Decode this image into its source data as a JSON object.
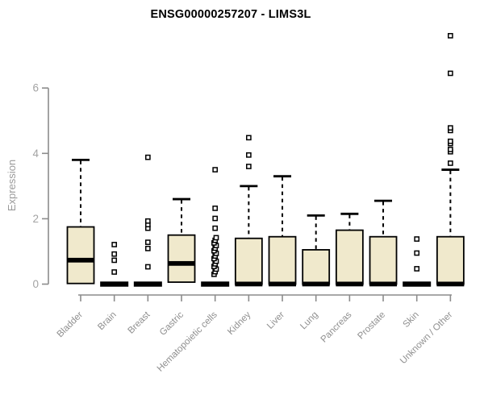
{
  "chart_data": {
    "type": "boxplot",
    "title": "ENSG00000257207 - LIMS3L",
    "ylabel": "Expression",
    "xlabel": "",
    "ylim": [
      0,
      7.8
    ],
    "yticks": [
      0,
      2,
      4,
      6
    ],
    "grid": false,
    "legend": false,
    "box_fill_color": "#f0e9cc",
    "box_border_color": "#000000",
    "median_color": "#000000",
    "axis_color": "#8c8c8c",
    "ytick_label_color": "#a3a3a3",
    "xtick_label_color": "#8f8f8f",
    "outlier_shape": "open-square",
    "categories": [
      "Bladder",
      "Brain",
      "Breast",
      "Gastric",
      "Hematopoietic cells",
      "Kidney",
      "Liver",
      "Lung",
      "Pancreas",
      "Prostate",
      "Skin",
      "Unknown / Other"
    ],
    "boxes": [
      {
        "category": "Bladder",
        "min": 0,
        "q1": 0.02,
        "median": 0.75,
        "q3": 1.75,
        "max": 3.8,
        "collapsed": false,
        "outliers": []
      },
      {
        "category": "Brain",
        "min": 0,
        "q1": 0,
        "median": 0.02,
        "q3": 0.05,
        "max": 0.05,
        "collapsed": true,
        "outliers": [
          0.37,
          0.73,
          0.92,
          1.21
        ]
      },
      {
        "category": "Breast",
        "min": 0,
        "q1": 0,
        "median": 0.02,
        "q3": 0.05,
        "max": 0.05,
        "collapsed": true,
        "outliers": [
          0.53,
          1.09,
          1.28,
          1.71,
          1.82,
          1.93,
          3.88
        ]
      },
      {
        "category": "Gastric",
        "min": 0.06,
        "q1": 0.06,
        "median": 0.65,
        "q3": 1.5,
        "max": 2.6,
        "collapsed": false,
        "outliers": []
      },
      {
        "category": "Hematopoietic cells",
        "min": 0,
        "q1": 0,
        "median": 0.02,
        "q3": 0.05,
        "max": 0.05,
        "collapsed": true,
        "outliers": [
          0.3,
          0.38,
          0.46,
          0.54,
          0.62,
          0.7,
          0.78,
          0.86,
          0.94,
          1.02,
          1.1,
          1.18,
          1.26,
          1.34,
          1.42,
          1.71,
          2.01,
          2.32,
          3.5
        ]
      },
      {
        "category": "Kidney",
        "min": 0,
        "q1": 0,
        "median": 0.02,
        "q3": 1.4,
        "max": 3.0,
        "collapsed": false,
        "outliers": [
          3.6,
          3.95,
          4.48
        ]
      },
      {
        "category": "Liver",
        "min": 0,
        "q1": 0,
        "median": 0.02,
        "q3": 1.45,
        "max": 3.3,
        "collapsed": false,
        "outliers": []
      },
      {
        "category": "Lung",
        "min": 0,
        "q1": 0,
        "median": 0.02,
        "q3": 1.05,
        "max": 2.1,
        "collapsed": false,
        "outliers": []
      },
      {
        "category": "Pancreas",
        "min": 0,
        "q1": 0,
        "median": 0.02,
        "q3": 1.65,
        "max": 2.15,
        "collapsed": false,
        "outliers": []
      },
      {
        "category": "Prostate",
        "min": 0,
        "q1": 0,
        "median": 0.02,
        "q3": 1.45,
        "max": 2.55,
        "collapsed": false,
        "outliers": []
      },
      {
        "category": "Skin",
        "min": 0,
        "q1": 0,
        "median": 0.02,
        "q3": 0.05,
        "max": 0.05,
        "collapsed": true,
        "outliers": [
          0.47,
          0.95,
          1.38
        ]
      },
      {
        "category": "Unknown / Other",
        "min": 0,
        "q1": 0,
        "median": 0.02,
        "q3": 1.45,
        "max": 3.5,
        "collapsed": false,
        "outliers": [
          3.7,
          4.05,
          4.12,
          4.3,
          4.37,
          4.7,
          4.78,
          6.45,
          7.6
        ]
      }
    ]
  }
}
